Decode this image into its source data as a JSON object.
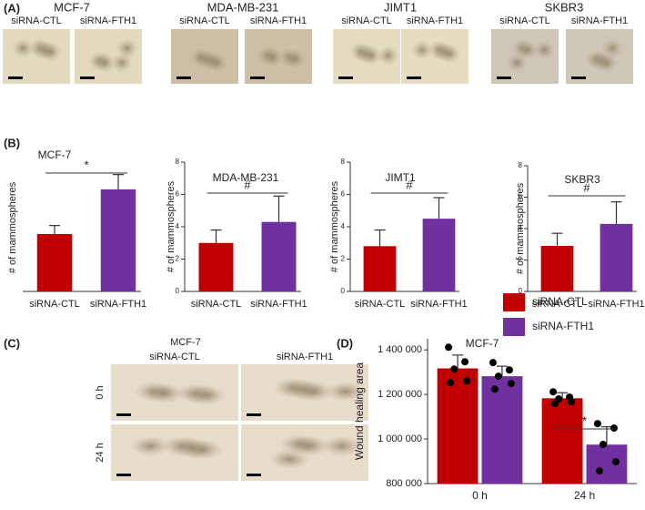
{
  "panel_a": {
    "label": "(A)",
    "groups": [
      {
        "name": "MCF-7",
        "images": [
          "siRNA-CTL",
          "siRNA-FTH1"
        ]
      },
      {
        "name": "MDA-MB-231",
        "images": [
          "siRNA-CTL",
          "siRNA-FTH1"
        ]
      },
      {
        "name": "JIMT1",
        "images": [
          "siRNA-CTL",
          "siRNA-FTH1"
        ]
      },
      {
        "name": "SKBR3",
        "images": [
          "siRNA-CTL",
          "siRNA-FTH1"
        ]
      }
    ]
  },
  "panel_b": {
    "label": "(B)"
  },
  "panel_c": {
    "label": "(C)",
    "title": "MCF-7",
    "columns": [
      "siRNA-CTL",
      "siRNA-FTH1"
    ],
    "rows": [
      "0 h",
      "24 h"
    ]
  },
  "panel_d": {
    "label": "(D)"
  },
  "chart_data": [
    {
      "type": "bar",
      "title": "MCF-7",
      "y_label": "# of mammospheres",
      "categories": [
        "siRNA-CTL",
        "siRNA-FTH1"
      ],
      "values": [
        2.7,
        4.8
      ],
      "errors": [
        0.4,
        0.7
      ],
      "colors": [
        "#c00000",
        "#7030a0"
      ],
      "ylim": [
        0,
        6
      ],
      "yticks": [],
      "annotation": "*"
    },
    {
      "type": "bar",
      "title": "MDA-MB-231",
      "y_label": "# of mammospheres",
      "categories": [
        "siRNA-CTL",
        "siRNA-FTH1"
      ],
      "values": [
        3.0,
        4.3
      ],
      "errors": [
        0.8,
        1.6
      ],
      "colors": [
        "#c00000",
        "#7030a0"
      ],
      "ylim": [
        0,
        8
      ],
      "yticks": [
        0,
        2,
        4,
        6,
        8
      ],
      "annotation": "#"
    },
    {
      "type": "bar",
      "title": "JIMT1",
      "y_label": "# of mammospheres",
      "categories": [
        "siRNA-CTL",
        "siRNA-FTH1"
      ],
      "values": [
        2.8,
        4.5
      ],
      "errors": [
        1.0,
        1.3
      ],
      "colors": [
        "#c00000",
        "#7030a0"
      ],
      "ylim": [
        0,
        8
      ],
      "yticks": [
        0,
        2,
        4,
        6,
        8
      ],
      "annotation": "#"
    },
    {
      "type": "bar",
      "title": "SKBR3",
      "y_label": "# of mammospheres",
      "categories": [
        "siRNA-CTL",
        "siRNA-FTH1"
      ],
      "values": [
        2.9,
        4.3
      ],
      "errors": [
        0.8,
        1.4
      ],
      "colors": [
        "#c00000",
        "#7030a0"
      ],
      "ylim": [
        0,
        8
      ],
      "yticks": [
        0,
        2,
        4,
        6,
        8
      ],
      "annotation": "#"
    },
    {
      "type": "bar",
      "title": "MCF-7",
      "y_label": "Wound healing area",
      "categories": [
        "0 h",
        "24 h"
      ],
      "series": [
        {
          "name": "siRNA-CTL",
          "color": "#c00000",
          "values": [
            1317000,
            1183000
          ],
          "errors": [
            60000,
            25000
          ],
          "points": [
            [
              1412000,
              1347000,
              1314000,
              1261000,
              1253000
            ],
            [
              1212000,
              1188000,
              1180000,
              1167000,
              1159000
            ]
          ]
        },
        {
          "name": "siRNA-FTH1",
          "color": "#7030a0",
          "values": [
            1282000,
            975000
          ],
          "errors": [
            45000,
            80000
          ],
          "points": [
            [
              1343000,
              1310000,
              1282000,
              1249000,
              1224000
            ],
            [
              1069000,
              1049000,
              976000,
              898000,
              857000
            ]
          ]
        }
      ],
      "ylim": [
        800000,
        1450000
      ],
      "yticks": [
        {
          "value": 800000,
          "label": "800 000"
        },
        {
          "value": 1000000,
          "label": "1 000 000"
        },
        {
          "value": 1200000,
          "label": "1 200 000"
        },
        {
          "value": 1400000,
          "label": "1 400 000"
        }
      ],
      "annotation": "*",
      "legend": "upper right"
    }
  ]
}
